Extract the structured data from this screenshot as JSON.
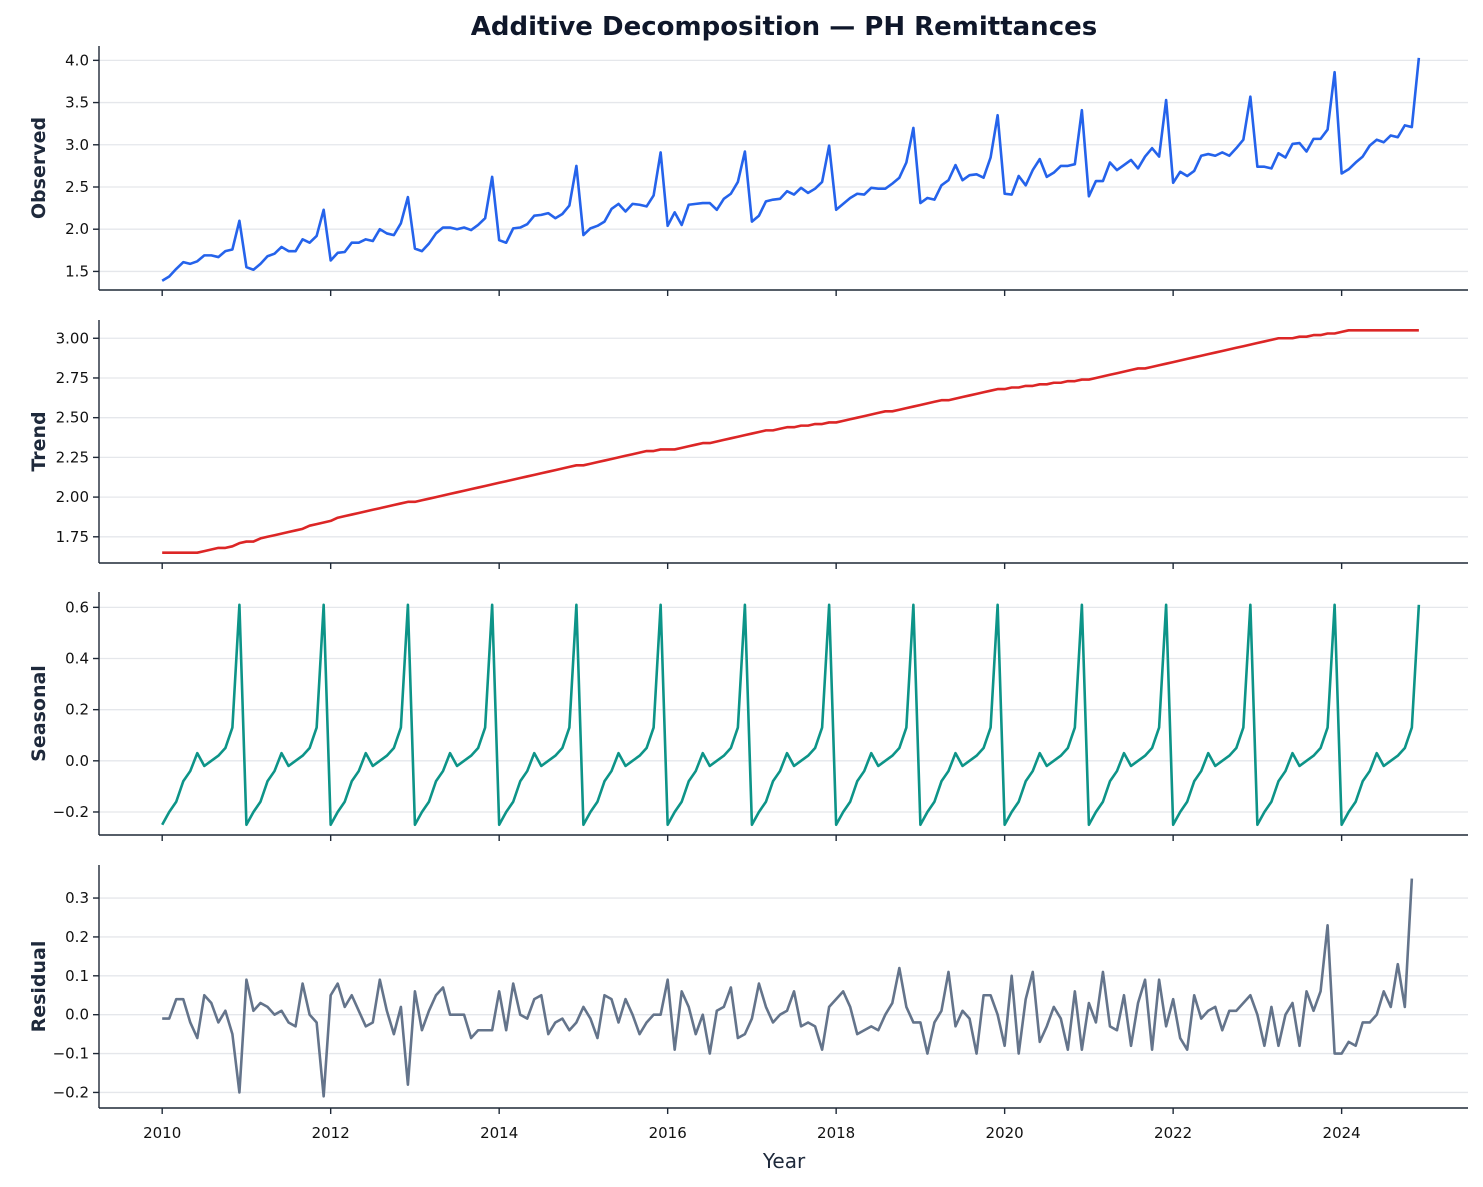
{
  "chart_data": {
    "type": "line",
    "title": "Additive Decomposition — PH Remittances",
    "xlabel": "Year",
    "x_tick_labels": [
      "2010",
      "2012",
      "2014",
      "2016",
      "2018",
      "2020",
      "2022",
      "2024"
    ],
    "x_range": [
      "2009-04",
      "2025-07"
    ],
    "start": "2010-01",
    "frequency": "monthly",
    "grid": "horizontal",
    "panels": [
      {
        "name": "Observed",
        "ylabel": "Observed",
        "color": "#2563eb",
        "ylim": [
          1.28,
          4.17
        ],
        "yticks": [
          1.5,
          2.0,
          2.5,
          3.0,
          3.5,
          4.0
        ],
        "tick_labels": [
          "1.5",
          "2.0",
          "2.5",
          "3.0",
          "3.5",
          "4.0"
        ],
        "values": [
          1.39,
          1.44,
          1.53,
          1.61,
          1.59,
          1.62,
          1.69,
          1.69,
          1.67,
          1.74,
          1.76,
          2.1,
          1.55,
          1.52,
          1.59,
          1.68,
          1.71,
          1.79,
          1.74,
          1.74,
          1.88,
          1.84,
          1.92,
          2.23,
          1.63,
          1.72,
          1.73,
          1.84,
          1.84,
          1.88,
          1.86,
          2.0,
          1.95,
          1.93,
          2.07,
          2.38,
          1.77,
          1.74,
          1.83,
          1.95,
          2.02,
          2.02,
          2.0,
          2.02,
          1.99,
          2.05,
          2.13,
          2.62,
          1.87,
          1.84,
          2.01,
          2.02,
          2.06,
          2.16,
          2.17,
          2.19,
          2.13,
          2.18,
          2.28,
          2.75,
          1.93,
          2.01,
          2.04,
          2.09,
          2.24,
          2.3,
          2.21,
          2.3,
          2.29,
          2.27,
          2.4,
          2.91,
          2.04,
          2.2,
          2.05,
          2.29,
          2.3,
          2.31,
          2.31,
          2.23,
          2.36,
          2.42,
          2.56,
          2.92,
          2.09,
          2.16,
          2.33,
          2.35,
          2.36,
          2.45,
          2.41,
          2.49,
          2.43,
          2.48,
          2.56,
          2.99,
          2.23,
          2.3,
          2.37,
          2.42,
          2.41,
          2.49,
          2.48,
          2.48,
          2.54,
          2.61,
          2.79,
          3.2,
          2.31,
          2.37,
          2.35,
          2.52,
          2.58,
          2.76,
          2.58,
          2.64,
          2.65,
          2.61,
          2.85,
          3.35,
          2.42,
          2.41,
          2.63,
          2.52,
          2.7,
          2.83,
          2.62,
          2.67,
          2.75,
          2.75,
          2.77,
          3.41,
          2.39,
          2.57,
          2.57,
          2.79,
          2.7,
          2.76,
          2.82,
          2.72,
          2.86,
          2.96,
          2.86,
          3.53,
          2.55,
          2.68,
          2.63,
          2.69,
          2.87,
          2.89,
          2.87,
          2.91,
          2.87,
          2.96,
          3.06,
          3.57,
          2.74,
          2.74,
          2.72,
          2.9,
          2.85,
          3.01,
          3.02,
          2.92,
          3.07,
          3.07,
          3.18,
          3.86,
          2.66,
          2.71,
          2.79,
          2.86,
          2.99,
          3.06,
          3.03,
          3.11,
          3.09,
          3.23,
          3.21,
          4.03
        ]
      },
      {
        "name": "Trend",
        "ylabel": "Trend",
        "color": "#dc2626",
        "ylim": [
          1.585,
          3.115
        ],
        "yticks": [
          1.75,
          2.0,
          2.25,
          2.5,
          2.75,
          3.0
        ],
        "tick_labels": [
          "1.75",
          "2.00",
          "2.25",
          "2.50",
          "2.75",
          "3.00"
        ],
        "values": [
          1.65,
          1.65,
          1.65,
          1.65,
          1.65,
          1.65,
          1.66,
          1.67,
          1.68,
          1.68,
          1.69,
          1.71,
          1.72,
          1.72,
          1.74,
          1.75,
          1.76,
          1.77,
          1.78,
          1.79,
          1.8,
          1.82,
          1.83,
          1.84,
          1.85,
          1.87,
          1.88,
          1.89,
          1.9,
          1.91,
          1.92,
          1.93,
          1.94,
          1.95,
          1.96,
          1.97,
          1.97,
          1.98,
          1.99,
          2.0,
          2.01,
          2.02,
          2.03,
          2.04,
          2.05,
          2.06,
          2.07,
          2.08,
          2.09,
          2.1,
          2.11,
          2.12,
          2.13,
          2.14,
          2.15,
          2.16,
          2.17,
          2.18,
          2.19,
          2.2,
          2.2,
          2.21,
          2.22,
          2.23,
          2.24,
          2.25,
          2.26,
          2.27,
          2.28,
          2.29,
          2.29,
          2.3,
          2.3,
          2.3,
          2.31,
          2.32,
          2.33,
          2.34,
          2.34,
          2.35,
          2.36,
          2.37,
          2.38,
          2.39,
          2.4,
          2.41,
          2.42,
          2.42,
          2.43,
          2.44,
          2.44,
          2.45,
          2.45,
          2.46,
          2.46,
          2.47,
          2.47,
          2.48,
          2.49,
          2.5,
          2.51,
          2.52,
          2.53,
          2.54,
          2.54,
          2.55,
          2.56,
          2.57,
          2.58,
          2.59,
          2.6,
          2.61,
          2.61,
          2.62,
          2.63,
          2.64,
          2.65,
          2.66,
          2.67,
          2.68,
          2.68,
          2.69,
          2.69,
          2.7,
          2.7,
          2.71,
          2.71,
          2.72,
          2.72,
          2.73,
          2.73,
          2.74,
          2.74,
          2.75,
          2.76,
          2.77,
          2.78,
          2.79,
          2.8,
          2.81,
          2.81,
          2.82,
          2.83,
          2.84,
          2.85,
          2.86,
          2.87,
          2.88,
          2.89,
          2.9,
          2.91,
          2.92,
          2.93,
          2.94,
          2.95,
          2.96,
          2.97,
          2.98,
          2.99,
          3.0,
          3.0,
          3.0,
          3.01,
          3.01,
          3.02,
          3.02,
          3.03,
          3.03,
          3.04,
          3.05,
          3.05,
          3.05,
          3.05,
          3.05,
          3.05,
          3.05,
          3.05,
          3.05,
          3.05,
          3.05
        ]
      },
      {
        "name": "Seasonal",
        "ylabel": "Seasonal",
        "color": "#0d9488",
        "ylim": [
          -0.29,
          0.66
        ],
        "yticks": [
          -0.2,
          0.0,
          0.2,
          0.4,
          0.6
        ],
        "tick_labels": [
          "−0.2",
          "0.0",
          "0.2",
          "0.4",
          "0.6"
        ],
        "pattern": [
          -0.25,
          -0.2,
          -0.16,
          -0.08,
          -0.04,
          0.03,
          -0.02,
          0.0,
          0.02,
          0.05,
          0.13,
          0.61
        ]
      },
      {
        "name": "Residual",
        "ylabel": "Residual",
        "color": "#64748b",
        "ylim": [
          -0.24,
          0.385
        ],
        "yticks": [
          -0.2,
          -0.1,
          0.0,
          0.1,
          0.2,
          0.3
        ],
        "tick_labels": [
          "−0.2",
          "−0.1",
          "0.0",
          "0.1",
          "0.2",
          "0.3"
        ],
        "values": [
          -0.01,
          -0.01,
          0.04,
          0.04,
          -0.02,
          -0.06,
          0.05,
          0.03,
          -0.02,
          0.01,
          -0.05,
          -0.2,
          0.09,
          0.01,
          0.03,
          0.02,
          0.0,
          0.01,
          -0.02,
          -0.03,
          0.08,
          0.0,
          -0.02,
          -0.21,
          0.05,
          0.08,
          0.02,
          0.05,
          0.01,
          -0.03,
          -0.02,
          0.09,
          0.01,
          -0.05,
          0.02,
          -0.18,
          0.06,
          -0.04,
          0.01,
          0.05,
          0.07,
          0.0,
          0.0,
          0.0,
          -0.06,
          -0.04,
          -0.04,
          -0.04,
          0.06,
          -0.04,
          0.08,
          0.0,
          -0.01,
          0.04,
          0.05,
          -0.05,
          -0.02,
          -0.01,
          -0.04,
          -0.02,
          0.02,
          -0.01,
          -0.06,
          0.05,
          0.04,
          -0.02,
          0.04,
          0.0,
          -0.05,
          -0.02,
          0.0,
          0.0,
          0.09,
          -0.09,
          0.06,
          0.02,
          -0.05,
          0.0,
          -0.1,
          0.01,
          0.02,
          0.07,
          -0.06,
          -0.05,
          -0.01,
          0.08,
          0.02,
          -0.02,
          0.0,
          0.01,
          0.06,
          -0.03,
          -0.02,
          -0.03,
          -0.09,
          0.02,
          0.04,
          0.06,
          0.02,
          -0.05,
          -0.04,
          -0.03,
          -0.04,
          0.0,
          0.03,
          0.12,
          0.02,
          -0.02,
          -0.02,
          -0.1,
          -0.02,
          0.01,
          0.11,
          -0.03,
          0.01,
          -0.01,
          -0.1,
          0.05,
          0.05,
          0.0,
          -0.08,
          0.1,
          -0.1,
          0.04,
          0.11,
          -0.07,
          -0.03,
          0.02,
          -0.01,
          -0.09,
          0.06,
          -0.09,
          0.03,
          -0.02,
          0.11,
          -0.03,
          -0.04,
          0.05,
          -0.08,
          0.03,
          0.09,
          -0.09,
          0.09,
          -0.03,
          0.04,
          -0.06,
          -0.09,
          0.05,
          -0.01,
          0.01,
          0.02,
          -0.04,
          0.01,
          0.01,
          0.03,
          0.05,
          0.0,
          -0.08,
          0.02,
          -0.08,
          0.0,
          0.03,
          -0.08,
          0.06,
          0.01,
          0.06,
          0.23,
          -0.1,
          -0.1,
          -0.07,
          -0.08,
          -0.02,
          -0.02,
          0.0,
          0.06,
          0.02,
          0.13,
          0.02,
          0.35
        ]
      }
    ]
  }
}
